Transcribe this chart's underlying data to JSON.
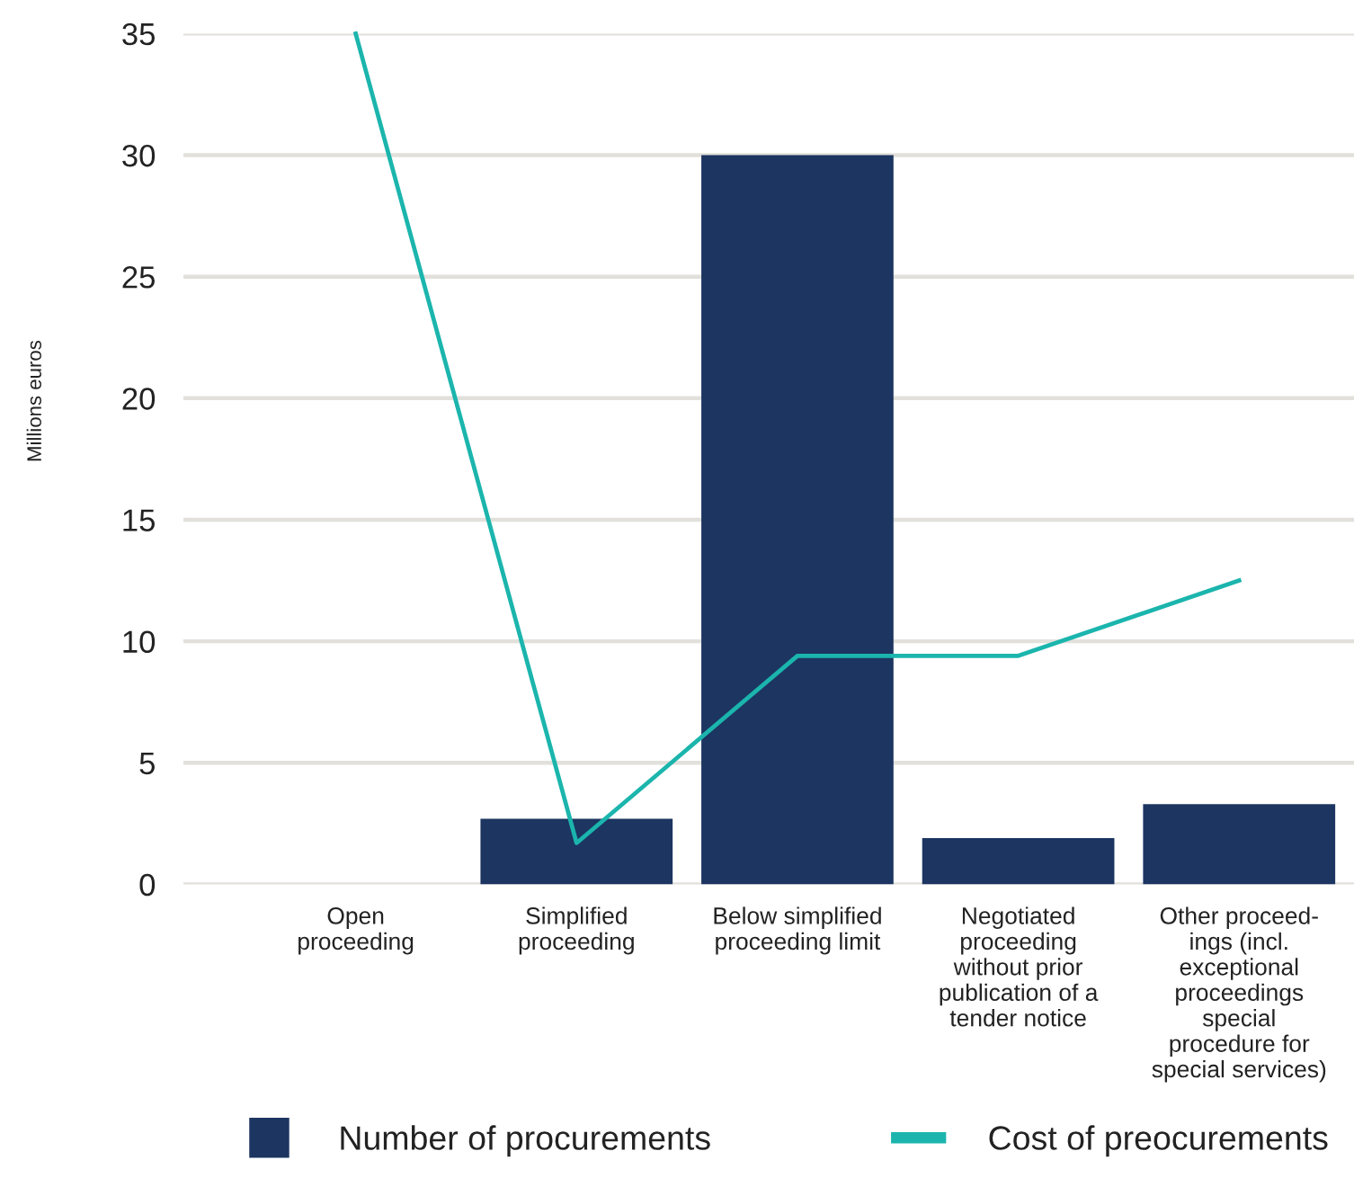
{
  "chart_data": {
    "type": "bar",
    "ylabel": "Millions euros",
    "categories": [
      "Open\nproceeding",
      "Simplified\nproceeding",
      "Below simplified\nproceeding limit",
      "Negotiated\nproceeding\nwithout prior\npublication of a\ntender notice",
      "Other proceed-\nings (incl.\nexceptional\nproceedings\nspecial\nprocedure for\nspecial services)"
    ],
    "series": [
      {
        "name": "Number of procurements",
        "color": "#1c3561",
        "values": [
          null,
          2.7,
          30,
          1.9,
          3.3
        ]
      },
      {
        "name": "Cost of preocurements",
        "type": "line",
        "color": "#1bb5ad",
        "values": [
          35,
          1.7,
          9.4,
          9.4,
          12.5
        ]
      }
    ],
    "ylim": [
      0,
      35
    ],
    "yticks": [
      0,
      5,
      10,
      15,
      20,
      25,
      30,
      35
    ],
    "grid": "y",
    "legend": "bottom"
  }
}
